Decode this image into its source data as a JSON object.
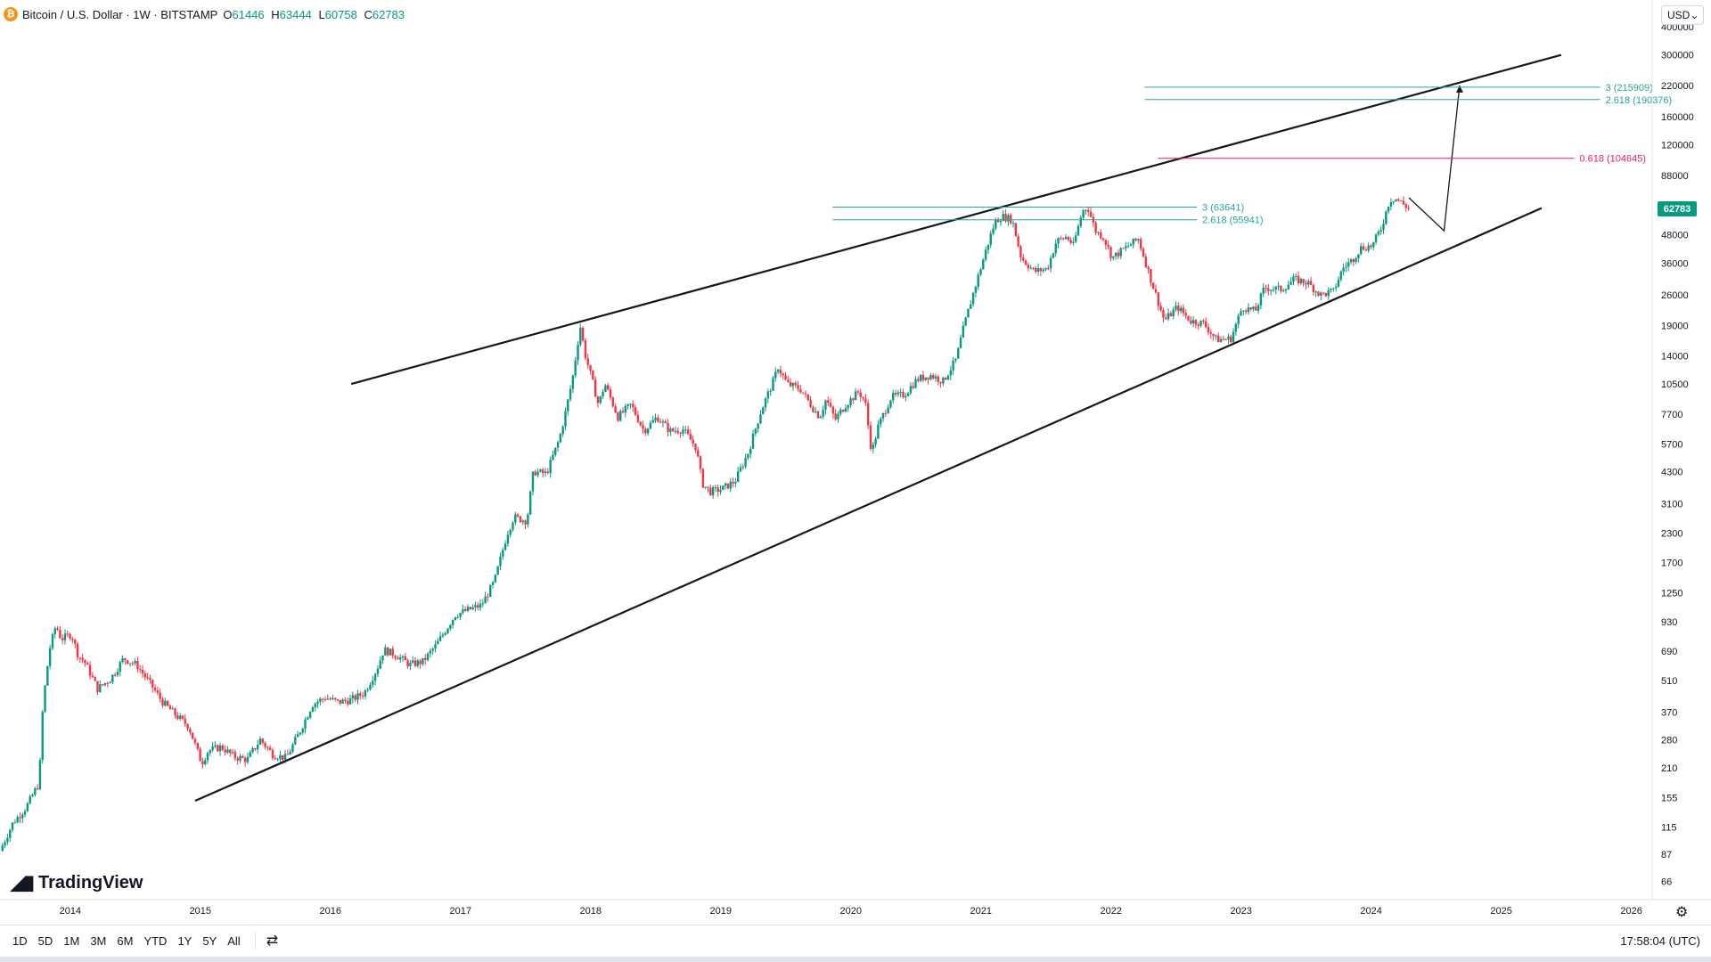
{
  "symbol": {
    "icon_glyph": "₿",
    "title": "Bitcoin / U.S. Dollar · 1W · BITSTAMP",
    "ohlc": [
      {
        "k": "O",
        "v": "61446"
      },
      {
        "k": "H",
        "v": "63444"
      },
      {
        "k": "L",
        "v": "60758"
      },
      {
        "k": "C",
        "v": "62783"
      }
    ]
  },
  "currency": {
    "label": "USD",
    "chevron": "⌄"
  },
  "current_price": {
    "label": "62783",
    "value": 62783
  },
  "logo": {
    "mark": "◢▮",
    "text": "TradingView"
  },
  "price_axis": {
    "ticks": [
      400000,
      300000,
      220000,
      160000,
      120000,
      88000,
      48000,
      36000,
      26000,
      19000,
      14000,
      10500,
      7700,
      5700,
      4300,
      3100,
      2300,
      1700,
      1250,
      930,
      690,
      510,
      370,
      280,
      210,
      155,
      115,
      87,
      66
    ],
    "labels": [
      "400000",
      "300000",
      "220000",
      "160000",
      "120000",
      "88000",
      "48000",
      "36000",
      "26000",
      "19000",
      "14000",
      "10500",
      "7700",
      "5700",
      "4300",
      "3100",
      "2300",
      "1700",
      "1250",
      "930",
      "690",
      "510",
      "370",
      "280",
      "210",
      "155",
      "115",
      "87",
      "66"
    ]
  },
  "time_axis": {
    "labels": [
      "2014",
      "2015",
      "2016",
      "2017",
      "2018",
      "2019",
      "2020",
      "2021",
      "2022",
      "2023",
      "2024",
      "2025",
      "2026"
    ],
    "years": [
      2014,
      2015,
      2016,
      2017,
      2018,
      2019,
      2020,
      2021,
      2022,
      2023,
      2024,
      2025,
      2026
    ]
  },
  "bottom_bar": {
    "ranges": [
      "1D",
      "5D",
      "1M",
      "3M",
      "6M",
      "YTD",
      "1Y",
      "5Y",
      "All"
    ],
    "compare_icon": "⇄",
    "clock": "17:58:04 (UTC)",
    "settings_icon": "⚙"
  },
  "chart_data": {
    "type": "candlestick",
    "title": "Bitcoin / U.S. Dollar · 1W · BITSTAMP",
    "y_scale": "log",
    "ylim": [
      55,
      450000
    ],
    "xlim": [
      2013.5,
      2026.2
    ],
    "series": [
      {
        "name": "BTCUSD",
        "points": [
          [
            2013.5,
            90
          ],
          [
            2013.6,
            120
          ],
          [
            2013.7,
            140
          ],
          [
            2013.8,
            180
          ],
          [
            2013.83,
            400
          ],
          [
            2013.88,
            700
          ],
          [
            2013.93,
            900
          ],
          [
            2013.97,
            780
          ],
          [
            2014.05,
            820
          ],
          [
            2014.1,
            660
          ],
          [
            2014.15,
            620
          ],
          [
            2014.25,
            470
          ],
          [
            2014.35,
            520
          ],
          [
            2014.45,
            640
          ],
          [
            2014.55,
            600
          ],
          [
            2014.65,
            500
          ],
          [
            2014.75,
            410
          ],
          [
            2014.85,
            360
          ],
          [
            2014.95,
            320
          ],
          [
            2015.05,
            220
          ],
          [
            2015.1,
            250
          ],
          [
            2015.2,
            260
          ],
          [
            2015.3,
            235
          ],
          [
            2015.4,
            228
          ],
          [
            2015.5,
            280
          ],
          [
            2015.6,
            240
          ],
          [
            2015.7,
            232
          ],
          [
            2015.8,
            300
          ],
          [
            2015.9,
            400
          ],
          [
            2016.0,
            430
          ],
          [
            2016.1,
            410
          ],
          [
            2016.2,
            420
          ],
          [
            2016.3,
            450
          ],
          [
            2016.4,
            580
          ],
          [
            2016.45,
            700
          ],
          [
            2016.55,
            660
          ],
          [
            2016.65,
            600
          ],
          [
            2016.75,
            620
          ],
          [
            2016.85,
            730
          ],
          [
            2016.95,
            900
          ],
          [
            2017.0,
            1000
          ],
          [
            2017.1,
            1050
          ],
          [
            2017.2,
            1100
          ],
          [
            2017.3,
            1400
          ],
          [
            2017.4,
            2300
          ],
          [
            2017.45,
            2700
          ],
          [
            2017.55,
            2600
          ],
          [
            2017.6,
            4300
          ],
          [
            2017.7,
            4200
          ],
          [
            2017.8,
            6000
          ],
          [
            2017.85,
            8000
          ],
          [
            2017.9,
            11000
          ],
          [
            2017.96,
            19000
          ],
          [
            2018.0,
            14000
          ],
          [
            2018.05,
            11000
          ],
          [
            2018.1,
            8500
          ],
          [
            2018.15,
            10500
          ],
          [
            2018.25,
            7500
          ],
          [
            2018.35,
            8500
          ],
          [
            2018.45,
            6500
          ],
          [
            2018.55,
            7500
          ],
          [
            2018.65,
            6500
          ],
          [
            2018.75,
            6600
          ],
          [
            2018.85,
            5500
          ],
          [
            2018.9,
            3800
          ],
          [
            2018.96,
            3500
          ],
          [
            2019.05,
            3600
          ],
          [
            2019.15,
            3900
          ],
          [
            2019.25,
            5200
          ],
          [
            2019.35,
            8000
          ],
          [
            2019.45,
            11000
          ],
          [
            2019.48,
            12500
          ],
          [
            2019.55,
            10500
          ],
          [
            2019.65,
            10000
          ],
          [
            2019.75,
            8200
          ],
          [
            2019.8,
            7500
          ],
          [
            2019.85,
            9000
          ],
          [
            2019.92,
            7300
          ],
          [
            2020.0,
            8500
          ],
          [
            2020.1,
            9700
          ],
          [
            2020.15,
            8800
          ],
          [
            2020.2,
            5200
          ],
          [
            2020.25,
            6800
          ],
          [
            2020.35,
            9200
          ],
          [
            2020.45,
            9400
          ],
          [
            2020.55,
            11000
          ],
          [
            2020.65,
            11500
          ],
          [
            2020.75,
            10800
          ],
          [
            2020.85,
            13500
          ],
          [
            2020.9,
            18000
          ],
          [
            2020.96,
            24000
          ],
          [
            2021.03,
            33000
          ],
          [
            2021.1,
            45000
          ],
          [
            2021.15,
            55000
          ],
          [
            2021.2,
            58000
          ],
          [
            2021.28,
            56000
          ],
          [
            2021.35,
            38000
          ],
          [
            2021.45,
            33000
          ],
          [
            2021.55,
            34000
          ],
          [
            2021.62,
            45000
          ],
          [
            2021.7,
            47000
          ],
          [
            2021.75,
            43000
          ],
          [
            2021.82,
            61000
          ],
          [
            2021.86,
            64000
          ],
          [
            2021.92,
            50000
          ],
          [
            2021.98,
            47000
          ],
          [
            2022.05,
            38000
          ],
          [
            2022.15,
            42000
          ],
          [
            2022.25,
            46000
          ],
          [
            2022.35,
            30000
          ],
          [
            2022.45,
            20000
          ],
          [
            2022.55,
            23000
          ],
          [
            2022.65,
            20000
          ],
          [
            2022.75,
            19500
          ],
          [
            2022.85,
            16500
          ],
          [
            2022.96,
            16600
          ],
          [
            2023.05,
            23000
          ],
          [
            2023.15,
            22000
          ],
          [
            2023.22,
            28000
          ],
          [
            2023.35,
            27500
          ],
          [
            2023.45,
            30500
          ],
          [
            2023.55,
            29500
          ],
          [
            2023.65,
            26000
          ],
          [
            2023.75,
            27000
          ],
          [
            2023.82,
            34000
          ],
          [
            2023.9,
            37500
          ],
          [
            2023.96,
            42000
          ],
          [
            2024.05,
            43000
          ],
          [
            2024.12,
            52000
          ],
          [
            2024.18,
            68000
          ],
          [
            2024.22,
            70000
          ],
          [
            2024.28,
            66000
          ],
          [
            2024.33,
            62783
          ]
        ]
      }
    ],
    "trendlines": [
      {
        "name": "upper-resistance",
        "from": [
          2016.2,
          10500
        ],
        "to": [
          2025.5,
          300000
        ]
      },
      {
        "name": "lower-support",
        "from": [
          2015.0,
          150
        ],
        "to": [
          2025.35,
          63000
        ]
      }
    ],
    "projection_path": [
      [
        2024.33,
        70000
      ],
      [
        2024.6,
        50000
      ],
      [
        2024.72,
        220000
      ]
    ],
    "fib_levels": [
      {
        "label": "3 (215909)",
        "value": 215909,
        "x_from": 2022.3,
        "x_to": 2025.8,
        "color": "#26a69a"
      },
      {
        "label": "2.618 (190376)",
        "value": 190376,
        "x_from": 2022.3,
        "x_to": 2025.8,
        "color": "#26a69a"
      },
      {
        "label": "0.618 (104645)",
        "value": 104645,
        "x_from": 2022.4,
        "x_to": 2025.6,
        "color": "#e91e63"
      },
      {
        "label": "3 (63641)",
        "value": 63641,
        "x_from": 2019.9,
        "x_to": 2022.7,
        "color": "#26a69a"
      },
      {
        "label": "2.618 (55941)",
        "value": 55941,
        "x_from": 2019.9,
        "x_to": 2022.7,
        "color": "#26a69a"
      }
    ],
    "grid": false
  },
  "colors": {
    "up": "#089981",
    "down": "#f23645",
    "line": "#131722",
    "fib_cyan": "#26a69a",
    "fib_pink": "#e91e63"
  }
}
